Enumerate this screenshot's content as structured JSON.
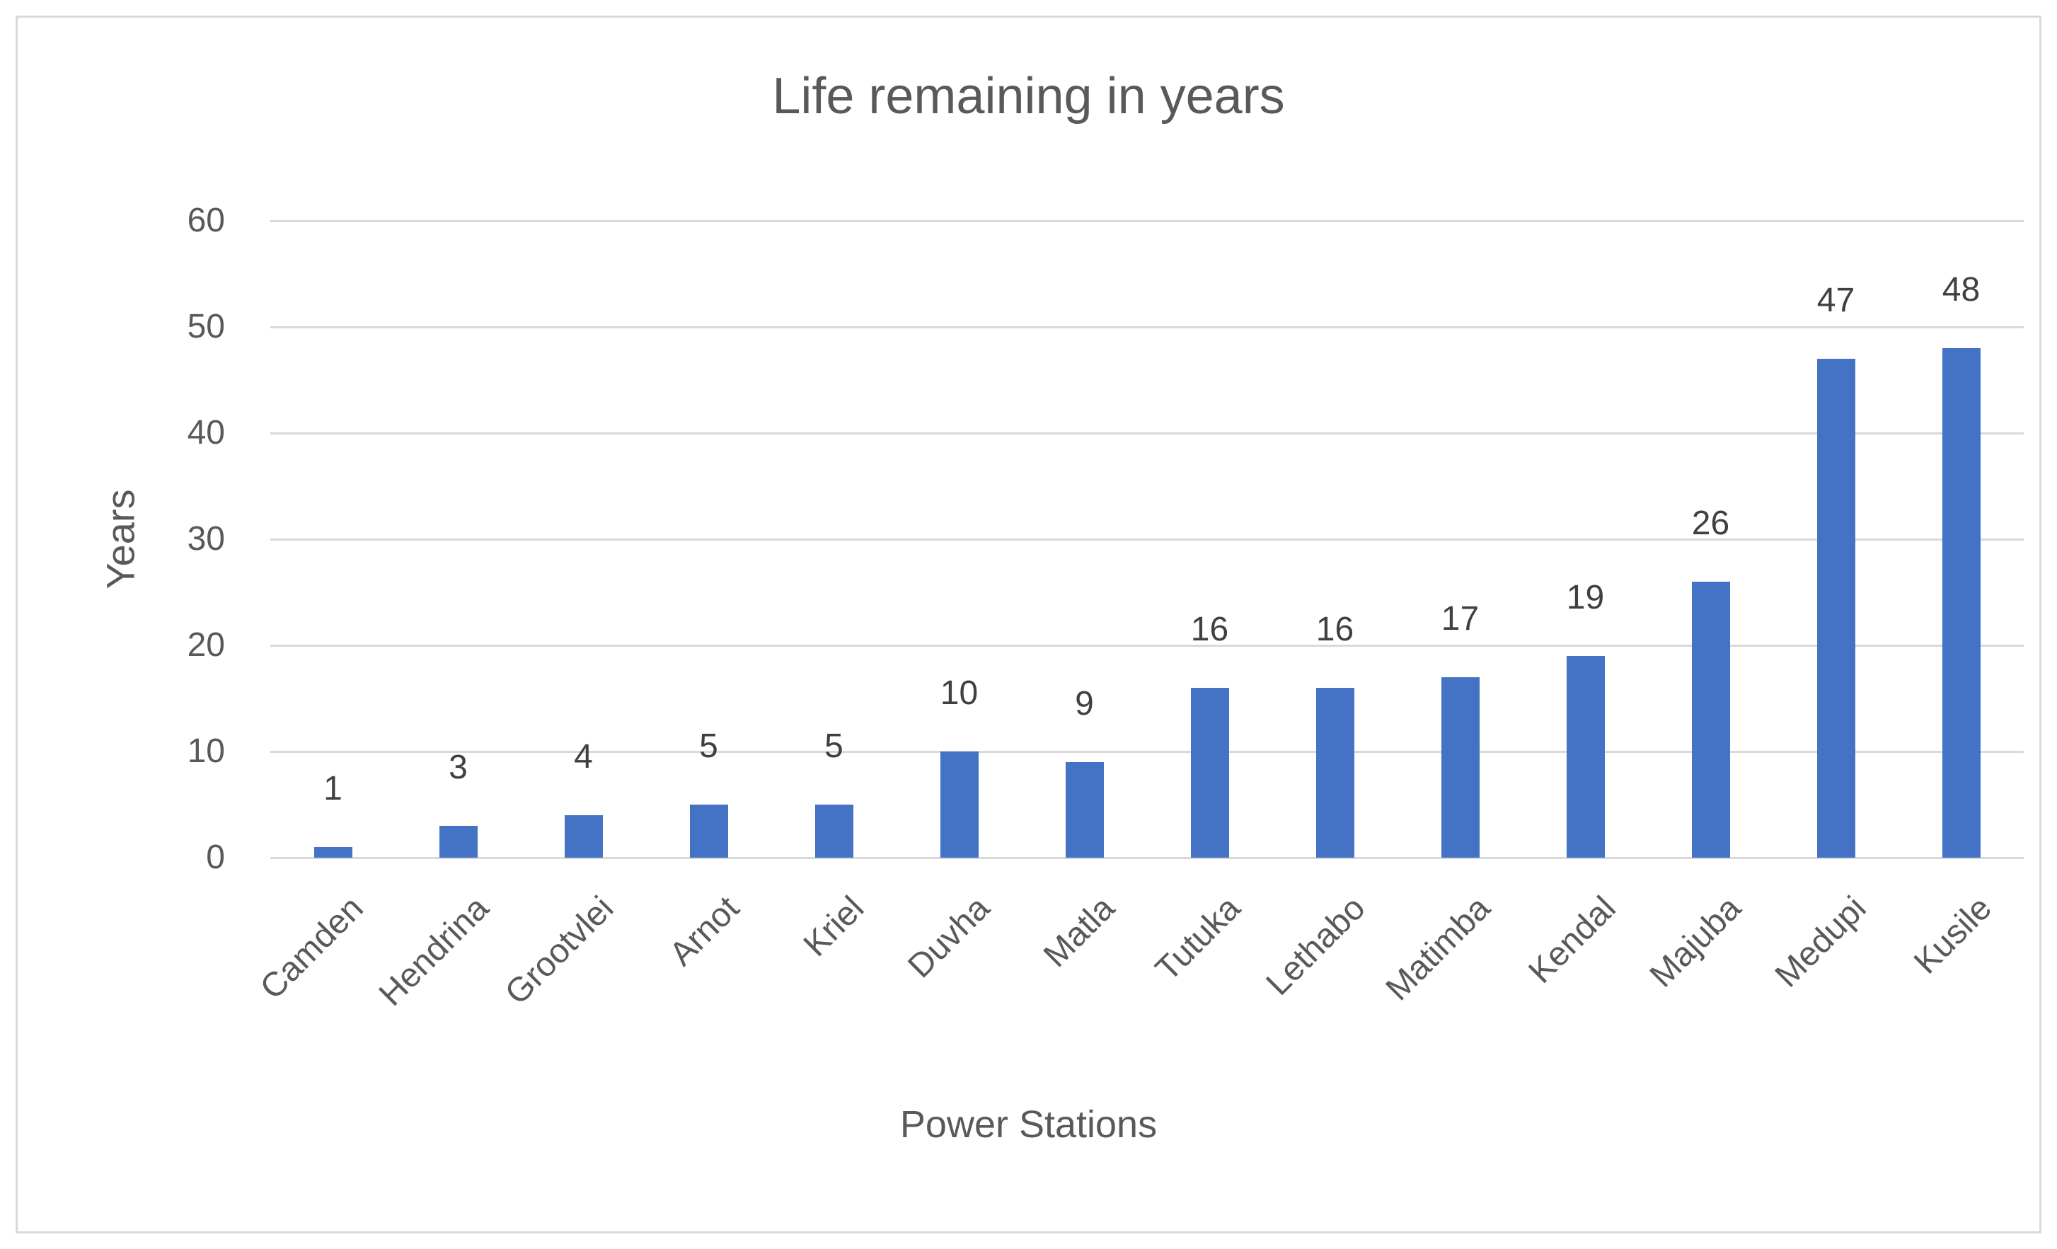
{
  "chart_data": {
    "type": "bar",
    "title": "Life remaining in years",
    "xlabel": "Power Stations",
    "ylabel": "Years",
    "categories": [
      "Camden",
      "Hendrina",
      "Grootvlei",
      "Arnot",
      "Kriel",
      "Duvha",
      "Matla",
      "Tutuka",
      "Lethabo",
      "Matimba",
      "Kendal",
      "Majuba",
      "Medupi",
      "Kusile"
    ],
    "values": [
      1,
      3,
      4,
      5,
      5,
      10,
      9,
      16,
      16,
      17,
      19,
      26,
      47,
      48
    ],
    "ylim": [
      0,
      60
    ],
    "yticks": [
      0,
      10,
      20,
      30,
      40,
      50,
      60
    ],
    "grid": "horizontal",
    "legend": "none",
    "data_labels": true,
    "colors": {
      "bar": "#4472C4",
      "gridline": "#D9D9D9",
      "axis_text": "#595959",
      "title_text": "#595959",
      "data_label_text": "#404040",
      "frame_border": "#D9D9D9",
      "background": "#FFFFFF"
    }
  }
}
